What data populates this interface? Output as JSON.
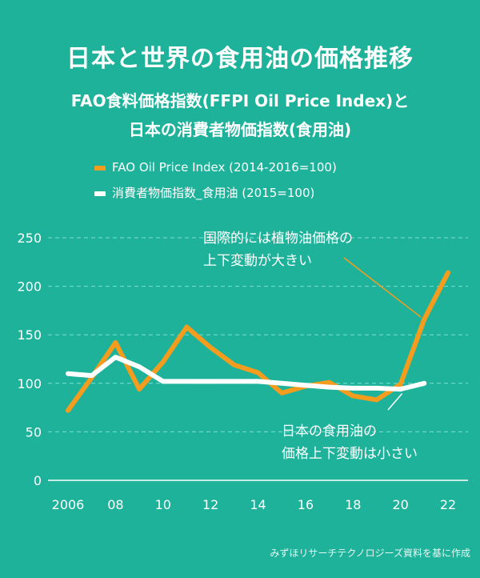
{
  "title": "日本と世界の食用油の価格推移",
  "subtitle_line1": "FAO食料価格指数(FFPI Oil Price Index)と",
  "subtitle_line2": "日本の消費者物価指数(食用油)",
  "source": "みずほリサーチテクノロジーズ資料を基に作成",
  "colors": {
    "background": "#1fb29b",
    "fao": "#f39c1e",
    "jp": "#ffffff"
  },
  "chart_data": {
    "type": "line",
    "x": [
      2006,
      2007,
      2008,
      2009,
      2010,
      2011,
      2012,
      2013,
      2014,
      2015,
      2016,
      2017,
      2018,
      2019,
      2020,
      2021,
      2022
    ],
    "x_tick_values": [
      2006,
      2008,
      2010,
      2012,
      2014,
      2016,
      2018,
      2020,
      2022
    ],
    "x_tick_labels": [
      "2006",
      "08",
      "10",
      "12",
      "14",
      "16",
      "18",
      "20",
      "22"
    ],
    "y_ticks": [
      0,
      50,
      100,
      150,
      200,
      250
    ],
    "ylim": [
      0,
      250
    ],
    "xlim": [
      2006,
      2022
    ],
    "grid": true,
    "legend_position": "top-left",
    "series": [
      {
        "name": "FAO Oil Price Index (2014-2016=100)",
        "color": "#f39c1e",
        "values": [
          72,
          106,
          142,
          94,
          122,
          158,
          137,
          119,
          111,
          90,
          97,
          101,
          87,
          83,
          99,
          166,
          214
        ]
      },
      {
        "name": "消費者物価指数_食用油 (2015=100)",
        "color": "#ffffff",
        "values": [
          110,
          108,
          127,
          117,
          102,
          102,
          102,
          102,
          102,
          100,
          98,
          96,
          95,
          95,
          94,
          100,
          null
        ]
      }
    ],
    "annotations": [
      {
        "text_line1": "国際的には植物油価格の",
        "text_line2": "上下変動が大きい",
        "points_to_year": 2021,
        "points_to_value": 173,
        "series": "FAO"
      },
      {
        "text_line1": "日本の食用油の",
        "text_line2": "価格上下変動は小さい",
        "points_to_year": 2020,
        "points_to_value": 96,
        "series": "JP"
      }
    ]
  }
}
